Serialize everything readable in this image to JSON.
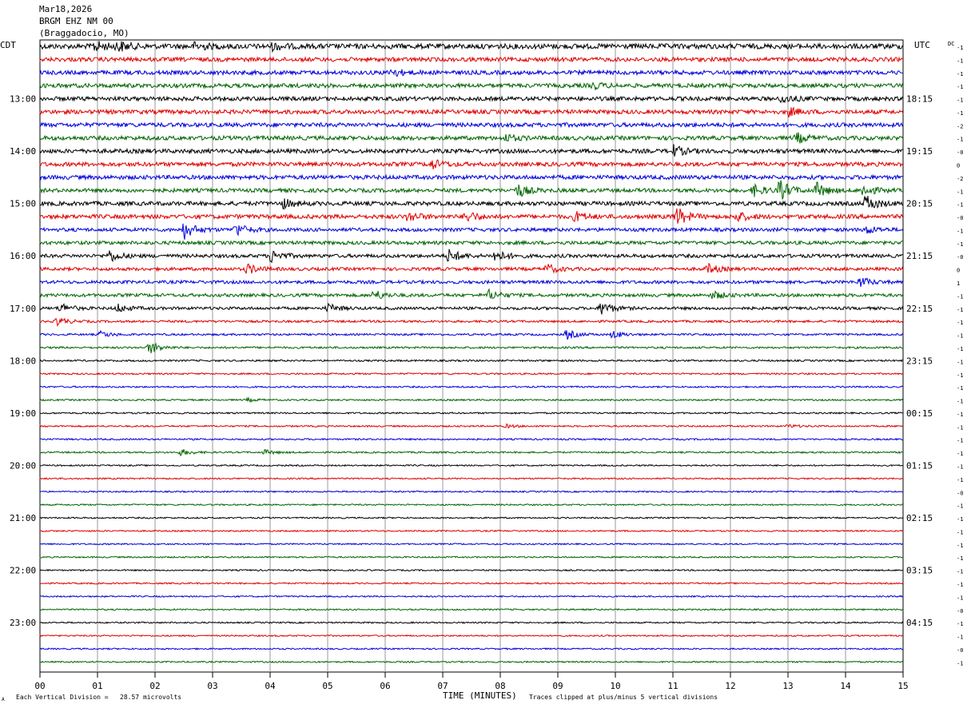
{
  "header": {
    "date": "Mar18,2026",
    "station": "BRGM EHZ NM 00",
    "location": "(Braggadocio, MO)"
  },
  "left_zone": "CDT",
  "right_zone": "UTC",
  "dc_label": "DC",
  "footer": {
    "scale_note": "Each Vertical Division =   28.57 microvolts",
    "axis_title": "TIME (MINUTES)",
    "clip_note": "Traces clipped at plus/minus 5 vertical divisions",
    "corner_mark": "A"
  },
  "chart_data": {
    "type": "line",
    "title": "",
    "xlabel": "TIME (MINUTES)",
    "x_ticks": [
      "00",
      "01",
      "02",
      "03",
      "04",
      "05",
      "06",
      "07",
      "08",
      "09",
      "10",
      "11",
      "12",
      "13",
      "14",
      "15"
    ],
    "xlim": [
      0,
      15
    ],
    "trace_colors": [
      "#000000",
      "#e00000",
      "#0000dd",
      "#006400"
    ],
    "trace_count": 48,
    "left_hour_labels": [
      {
        "trace": 4,
        "label": "13:00"
      },
      {
        "trace": 8,
        "label": "14:00"
      },
      {
        "trace": 12,
        "label": "15:00"
      },
      {
        "trace": 16,
        "label": "16:00"
      },
      {
        "trace": 20,
        "label": "17:00"
      },
      {
        "trace": 24,
        "label": "18:00"
      },
      {
        "trace": 28,
        "label": "19:00"
      },
      {
        "trace": 32,
        "label": "20:00"
      },
      {
        "trace": 36,
        "label": "21:00"
      },
      {
        "trace": 40,
        "label": "22:00"
      },
      {
        "trace": 44,
        "label": "23:00"
      }
    ],
    "right_hour_labels": [
      {
        "trace": 4,
        "label": "18:15"
      },
      {
        "trace": 8,
        "label": "19:15"
      },
      {
        "trace": 12,
        "label": "20:15"
      },
      {
        "trace": 16,
        "label": "21:15"
      },
      {
        "trace": 20,
        "label": "22:15"
      },
      {
        "trace": 24,
        "label": "23:15"
      },
      {
        "trace": 28,
        "label": "00:15"
      },
      {
        "trace": 32,
        "label": "01:15"
      },
      {
        "trace": 36,
        "label": "02:15"
      },
      {
        "trace": 40,
        "label": "03:15"
      },
      {
        "trace": 44,
        "label": "04:15"
      }
    ],
    "dc_offsets": [
      "-1",
      "-1",
      "-1",
      "-1",
      "-1",
      "-1",
      "-2",
      "-1",
      "-0",
      "0",
      "-2",
      "-1",
      "-1",
      "-0",
      "-1",
      "-1",
      "-0",
      "0",
      "1",
      "-1",
      "-1",
      "-1",
      "-1",
      "-1",
      "-1",
      "-1",
      "-1",
      "-1",
      "-1",
      "-1",
      "-1",
      "-1",
      "-1",
      "-1",
      "-0",
      "-1",
      "-1",
      "-1",
      "-1",
      "-1",
      "-1",
      "-1",
      "-1",
      "-0",
      "-1",
      "-1",
      "-0",
      "-1"
    ],
    "trace_amplitude": [
      3.2,
      2.6,
      2.6,
      2.6,
      2.6,
      2.6,
      2.6,
      2.6,
      2.6,
      2.6,
      2.6,
      2.4,
      2.6,
      2.6,
      2.2,
      2.2,
      2.2,
      2.0,
      2.0,
      2.0,
      1.8,
      1.4,
      1.2,
      1.2,
      1.1,
      1.0,
      1.0,
      1.0,
      1.0,
      1.0,
      1.0,
      1.0,
      0.9,
      0.9,
      0.9,
      0.9,
      0.9,
      0.9,
      0.9,
      0.9,
      0.9,
      0.9,
      0.9,
      0.9,
      0.9,
      0.9,
      0.9,
      0.9
    ],
    "events": [
      {
        "trace": 0,
        "minute": 0.95,
        "amp": 6
      },
      {
        "trace": 0,
        "minute": 1.35,
        "amp": 6
      },
      {
        "trace": 0,
        "minute": 2.7,
        "amp": 5
      },
      {
        "trace": 0,
        "minute": 4.05,
        "amp": 4
      },
      {
        "trace": 2,
        "minute": 6.1,
        "amp": 5
      },
      {
        "trace": 3,
        "minute": 9.6,
        "amp": 4
      },
      {
        "trace": 4,
        "minute": 12.9,
        "amp": 5
      },
      {
        "trace": 5,
        "minute": 13.0,
        "amp": 5
      },
      {
        "trace": 7,
        "minute": 8.1,
        "amp": 4
      },
      {
        "trace": 7,
        "minute": 13.15,
        "amp": 6
      },
      {
        "trace": 8,
        "minute": 11.0,
        "amp": 7
      },
      {
        "trace": 9,
        "minute": 6.8,
        "amp": 6
      },
      {
        "trace": 11,
        "minute": 8.3,
        "amp": 8
      },
      {
        "trace": 11,
        "minute": 12.4,
        "amp": 7
      },
      {
        "trace": 11,
        "minute": 12.85,
        "amp": 12
      },
      {
        "trace": 11,
        "minute": 13.5,
        "amp": 9
      },
      {
        "trace": 11,
        "minute": 14.3,
        "amp": 7
      },
      {
        "trace": 12,
        "minute": 4.2,
        "amp": 6
      },
      {
        "trace": 12,
        "minute": 14.35,
        "amp": 10
      },
      {
        "trace": 13,
        "minute": 6.4,
        "amp": 6
      },
      {
        "trace": 13,
        "minute": 7.4,
        "amp": 7
      },
      {
        "trace": 13,
        "minute": 9.3,
        "amp": 6
      },
      {
        "trace": 13,
        "minute": 11.05,
        "amp": 12
      },
      {
        "trace": 13,
        "minute": 12.1,
        "amp": 6
      },
      {
        "trace": 14,
        "minute": 2.5,
        "amp": 11
      },
      {
        "trace": 14,
        "minute": 3.4,
        "amp": 8
      },
      {
        "trace": 14,
        "minute": 14.35,
        "amp": 5
      },
      {
        "trace": 16,
        "minute": 1.2,
        "amp": 7
      },
      {
        "trace": 16,
        "minute": 4.0,
        "amp": 8
      },
      {
        "trace": 16,
        "minute": 7.1,
        "amp": 8
      },
      {
        "trace": 16,
        "minute": 7.9,
        "amp": 7
      },
      {
        "trace": 17,
        "minute": 3.6,
        "amp": 6
      },
      {
        "trace": 17,
        "minute": 8.8,
        "amp": 6
      },
      {
        "trace": 17,
        "minute": 11.6,
        "amp": 6
      },
      {
        "trace": 18,
        "minute": 14.25,
        "amp": 6
      },
      {
        "trace": 19,
        "minute": 5.8,
        "amp": 6
      },
      {
        "trace": 19,
        "minute": 7.8,
        "amp": 6
      },
      {
        "trace": 19,
        "minute": 11.7,
        "amp": 5
      },
      {
        "trace": 20,
        "minute": 0.35,
        "amp": 6
      },
      {
        "trace": 20,
        "minute": 1.35,
        "amp": 5
      },
      {
        "trace": 20,
        "minute": 5.0,
        "amp": 5
      },
      {
        "trace": 20,
        "minute": 9.75,
        "amp": 9
      },
      {
        "trace": 21,
        "minute": 0.3,
        "amp": 5
      },
      {
        "trace": 22,
        "minute": 1.05,
        "amp": 4
      },
      {
        "trace": 22,
        "minute": 9.15,
        "amp": 6
      },
      {
        "trace": 22,
        "minute": 9.95,
        "amp": 5
      },
      {
        "trace": 23,
        "minute": 1.9,
        "amp": 8
      },
      {
        "trace": 27,
        "minute": 3.6,
        "amp": 2
      },
      {
        "trace": 29,
        "minute": 8.1,
        "amp": 2
      },
      {
        "trace": 29,
        "minute": 13.0,
        "amp": 2
      },
      {
        "trace": 31,
        "minute": 2.45,
        "amp": 4
      },
      {
        "trace": 31,
        "minute": 3.9,
        "amp": 3
      }
    ]
  }
}
